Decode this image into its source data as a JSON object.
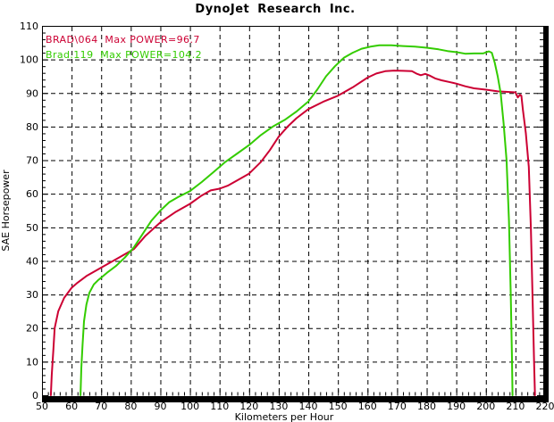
{
  "title": "DynoJet Research Inc.",
  "legend": [
    {
      "label": "BRAD\\064  Max POWER=96.7",
      "color": "#cc0033"
    },
    {
      "label": "Brad.119  Max POWER=104.2",
      "color": "#33cc00"
    }
  ],
  "chart_data": {
    "type": "line",
    "title": "DynoJet Research Inc.",
    "xlabel": "Kilometers per Hour",
    "ylabel": "SAE Horsepower",
    "xlim": [
      50,
      220
    ],
    "ylim": [
      0,
      110
    ],
    "x_ticks": [
      50,
      60,
      70,
      80,
      90,
      100,
      110,
      120,
      130,
      140,
      150,
      160,
      170,
      180,
      190,
      200,
      210,
      220
    ],
    "y_ticks": [
      0,
      10,
      20,
      30,
      40,
      50,
      60,
      70,
      80,
      90,
      100,
      110
    ],
    "x_minor_step": 2,
    "y_minor_step": 2,
    "grid": "dashed",
    "legend_position": "top-left",
    "background": "#ffffff",
    "frame_color": "#000000",
    "series": [
      {
        "name": "BRAD\\064",
        "max_power": 96.7,
        "color": "#cc0033",
        "points": [
          [
            53,
            0
          ],
          [
            53.3,
            6
          ],
          [
            53.8,
            13
          ],
          [
            54.3,
            20
          ],
          [
            55.5,
            25
          ],
          [
            57.5,
            29
          ],
          [
            60,
            32
          ],
          [
            62,
            33.5
          ],
          [
            65,
            35.5
          ],
          [
            70,
            38
          ],
          [
            75,
            40.5
          ],
          [
            81,
            43.5
          ],
          [
            85,
            47.5
          ],
          [
            90,
            51.5
          ],
          [
            95,
            54.5
          ],
          [
            100,
            57
          ],
          [
            104,
            59.5
          ],
          [
            107,
            61
          ],
          [
            110,
            61.5
          ],
          [
            113,
            62.5
          ],
          [
            116,
            64
          ],
          [
            120,
            66
          ],
          [
            124,
            69.5
          ],
          [
            127,
            73
          ],
          [
            130,
            77
          ],
          [
            133,
            80
          ],
          [
            136,
            82.5
          ],
          [
            140,
            85.2
          ],
          [
            145,
            87.4
          ],
          [
            150,
            89.2
          ],
          [
            155,
            91.7
          ],
          [
            160,
            94.6
          ],
          [
            163,
            95.8
          ],
          [
            166,
            96.5
          ],
          [
            169,
            96.7
          ],
          [
            172,
            96.6
          ],
          [
            175,
            96.5
          ],
          [
            176.5,
            95.8
          ],
          [
            178,
            95.3
          ],
          [
            179.5,
            95.7
          ],
          [
            181,
            95.2
          ],
          [
            183,
            94.3
          ],
          [
            185,
            93.8
          ],
          [
            188,
            93.2
          ],
          [
            190,
            92.8
          ],
          [
            193,
            92
          ],
          [
            196,
            91.4
          ],
          [
            200,
            91
          ],
          [
            204,
            90.5
          ],
          [
            208,
            90.3
          ],
          [
            210,
            90.2
          ],
          [
            210.8,
            88.7
          ],
          [
            211.5,
            89.5
          ],
          [
            212,
            89.2
          ],
          [
            212.5,
            85
          ],
          [
            213.5,
            78
          ],
          [
            214.5,
            68
          ],
          [
            215.2,
            50
          ],
          [
            215.8,
            28
          ],
          [
            216.3,
            10
          ],
          [
            216.6,
            0
          ]
        ]
      },
      {
        "name": "Brad.119",
        "max_power": 104.2,
        "color": "#33cc00",
        "points": [
          [
            63,
            0
          ],
          [
            63.3,
            8
          ],
          [
            63.7,
            15
          ],
          [
            64.2,
            22
          ],
          [
            65,
            27
          ],
          [
            66,
            30.5
          ],
          [
            67.5,
            33
          ],
          [
            69,
            34.3
          ],
          [
            70,
            35
          ],
          [
            72,
            36.5
          ],
          [
            75,
            38.5
          ],
          [
            78,
            41
          ],
          [
            81,
            44
          ],
          [
            84,
            48
          ],
          [
            87,
            52
          ],
          [
            90,
            55
          ],
          [
            93,
            57.5
          ],
          [
            96,
            59
          ],
          [
            100,
            60.8
          ],
          [
            104,
            63.5
          ],
          [
            108,
            66.5
          ],
          [
            112,
            69.5
          ],
          [
            116,
            72
          ],
          [
            120,
            74.5
          ],
          [
            124,
            77.5
          ],
          [
            128,
            80
          ],
          [
            132,
            82
          ],
          [
            136,
            84.5
          ],
          [
            140,
            87.5
          ],
          [
            143,
            91
          ],
          [
            146,
            95
          ],
          [
            149,
            98
          ],
          [
            152,
            100.5
          ],
          [
            155,
            102
          ],
          [
            158,
            103.2
          ],
          [
            161,
            103.8
          ],
          [
            164,
            104.2
          ],
          [
            168,
            104.2
          ],
          [
            172,
            104
          ],
          [
            176,
            103.8
          ],
          [
            180,
            103.5
          ],
          [
            184,
            103
          ],
          [
            187,
            102.5
          ],
          [
            190,
            102.2
          ],
          [
            193,
            101.7
          ],
          [
            196,
            101.8
          ],
          [
            199,
            101.8
          ],
          [
            201,
            102.4
          ],
          [
            202,
            102
          ],
          [
            203,
            99
          ],
          [
            204,
            95
          ],
          [
            205,
            90
          ],
          [
            206,
            81
          ],
          [
            207,
            70
          ],
          [
            207.8,
            52
          ],
          [
            208.4,
            30
          ],
          [
            208.8,
            12
          ],
          [
            209,
            0
          ]
        ]
      }
    ]
  }
}
